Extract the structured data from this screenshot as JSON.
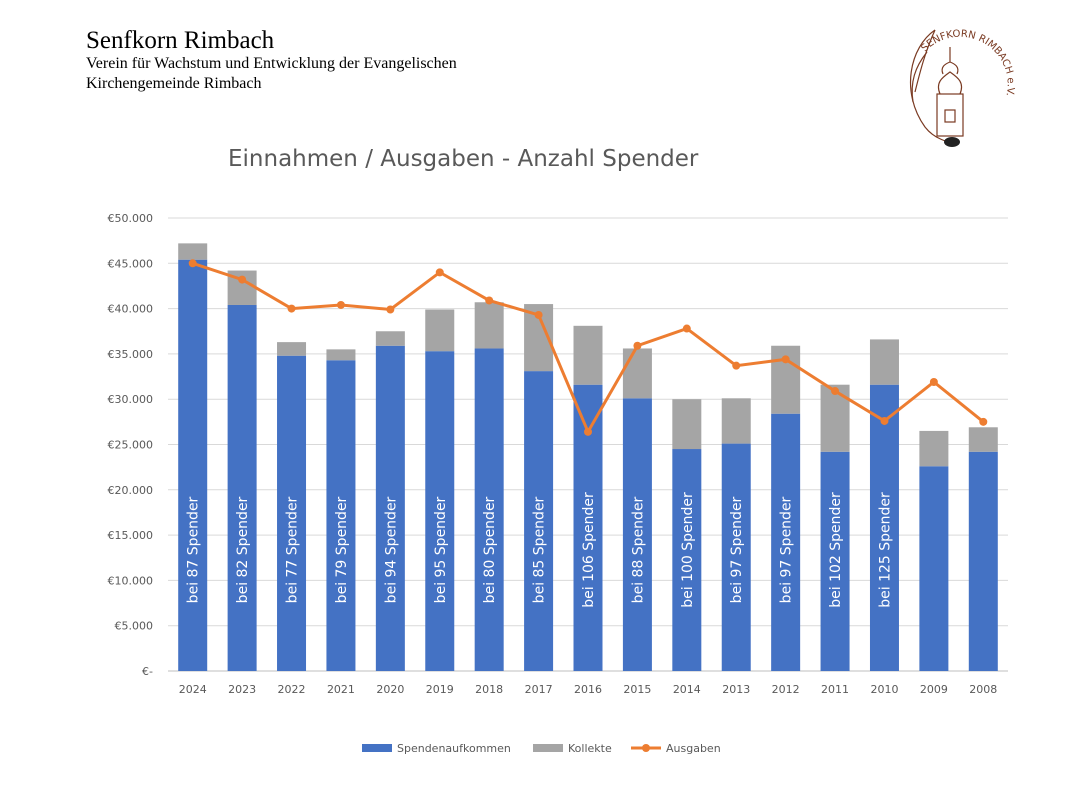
{
  "header": {
    "title": "Senfkorn Rimbach",
    "line1": "Verein für Wachstum und Entwicklung der Evangelischen",
    "line2": "Kirchengemeinde Rimbach",
    "logo_text": "SENFKORN RIMBACH e.V."
  },
  "chart_data": {
    "type": "bar",
    "stacked": true,
    "title": "Einnahmen / Ausgaben - Anzahl Spender",
    "categories": [
      "2024",
      "2023",
      "2022",
      "2021",
      "2020",
      "2019",
      "2018",
      "2017",
      "2016",
      "2015",
      "2014",
      "2013",
      "2012",
      "2011",
      "2010",
      "2009",
      "2008"
    ],
    "ylim": [
      0,
      50000
    ],
    "yticks": [
      "€-",
      "€5.000",
      "€10.000",
      "€15.000",
      "€20.000",
      "€25.000",
      "€30.000",
      "€35.000",
      "€40.000",
      "€45.000",
      "€50.000"
    ],
    "grid": true,
    "legend": "bottom",
    "series": [
      {
        "name": "Spendenaufkommen",
        "type": "bar",
        "color": "#4472C4",
        "values": [
          45400,
          40400,
          34800,
          34300,
          35900,
          35300,
          35600,
          33100,
          31600,
          30100,
          24500,
          25100,
          28400,
          24200,
          31600,
          22600,
          24200
        ]
      },
      {
        "name": "Kollekte",
        "type": "bar",
        "color": "#A5A5A5",
        "values": [
          1800,
          3800,
          1500,
          1200,
          1600,
          4600,
          5100,
          7400,
          6500,
          5500,
          5500,
          5000,
          7500,
          7400,
          5000,
          3900,
          2700
        ]
      },
      {
        "name": "Ausgaben",
        "type": "line",
        "color": "#ED7D31",
        "values": [
          45000,
          43200,
          40000,
          40400,
          39900,
          44000,
          40900,
          39300,
          26400,
          35900,
          37800,
          33700,
          34400,
          30900,
          27600,
          31900,
          27500
        ]
      }
    ],
    "bar_labels": [
      "bei 87 Spender",
      "bei 82 Spender",
      "bei 77 Spender",
      "bei 79 Spender",
      "bei 94 Spender",
      "bei 95 Spender",
      "bei 80 Spender",
      "bei 85 Spender",
      "bei 106 Spender",
      "bei 88 Spender",
      "bei 100 Spender",
      "bei 97 Spender",
      "bei 97 Spender",
      "bei 102 Spender",
      "bei 125 Spender",
      "",
      ""
    ]
  }
}
